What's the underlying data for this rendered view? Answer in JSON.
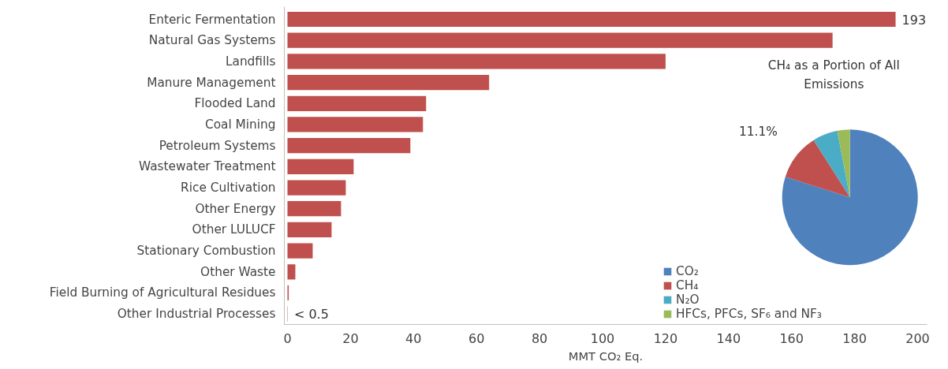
{
  "chart_data": [
    {
      "type": "bar",
      "orientation": "horizontal",
      "xlabel": "MMT CO₂ Eq.",
      "color": "#c0504d",
      "categories": [
        "Enteric Fermentation",
        "Natural Gas Systems",
        "Landfills",
        "Manure Management",
        "Flooded Land",
        "Coal Mining",
        "Petroleum Systems",
        "Wastewater Treatment",
        "Rice Cultivation",
        "Other Energy",
        "Other LULUCF",
        "Stationary Combustion",
        "Other Waste",
        "Field Burning of Agricultural Residues",
        "Other Industrial Processes"
      ],
      "values": [
        193,
        173,
        120,
        64,
        44,
        43,
        39,
        21,
        18.5,
        17,
        14,
        8,
        2.5,
        0.4,
        0.1
      ],
      "value_labels": [
        "193",
        null,
        null,
        null,
        null,
        null,
        null,
        null,
        null,
        null,
        null,
        null,
        null,
        null,
        "< 0.5"
      ],
      "xlim": [
        -1,
        203
      ],
      "xticks": [
        0,
        20,
        40,
        60,
        80,
        100,
        120,
        140,
        160,
        180,
        200
      ],
      "grid": false
    },
    {
      "type": "pie",
      "title": "CH₄ as a Portion of All Emissions",
      "categories": [
        "CO₂",
        "CH₄",
        "N₂O",
        "HFCs, PFCs, SF₆ and NF₃"
      ],
      "values": [
        79.9,
        11.1,
        6,
        3
      ],
      "colors": [
        "#4f81bd",
        "#c0504d",
        "#4bacc6",
        "#9bbb59"
      ],
      "value_labels": [
        null,
        "11.1%",
        null,
        null
      ],
      "legend": "bottom left"
    }
  ]
}
